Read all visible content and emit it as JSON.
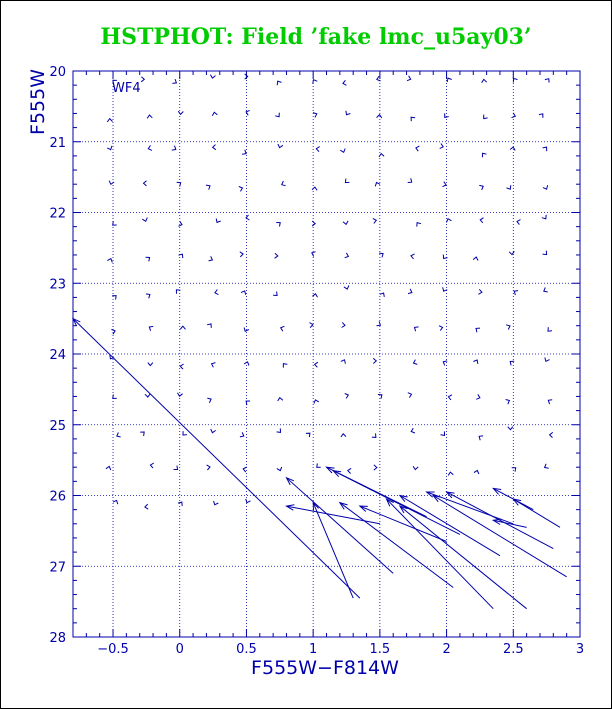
{
  "chart_data": {
    "type": "scatter",
    "title": "HSTPHOT: Field ’fake lmc_u5ay03’",
    "panel_label": "WF4",
    "xlabel": "F555W−F814W",
    "ylabel": "F555W",
    "xlim": [
      -0.8,
      3.0
    ],
    "ylim": [
      20,
      28
    ],
    "y_inverted": true,
    "grid": true,
    "x_ticks": [
      -0.5,
      0,
      0.5,
      1,
      1.5,
      2,
      2.5,
      3
    ],
    "x_tick_labels": [
      "−0.5",
      "0",
      "0.5",
      "1",
      "1.5",
      "2",
      "2.5",
      "3"
    ],
    "y_ticks": [
      20,
      21,
      22,
      23,
      24,
      25,
      26,
      27,
      28
    ],
    "y_tick_labels": [
      "20",
      "21",
      "22",
      "23",
      "24",
      "25",
      "26",
      "27",
      "28"
    ],
    "arrow_origins_x": [
      -0.5,
      -0.25,
      0,
      0.25,
      0.5,
      0.75,
      1,
      1.25,
      1.5,
      1.75,
      2,
      2.25,
      2.5,
      2.75
    ],
    "arrow_origins_y": [
      20.125,
      20.625,
      21.125,
      21.625,
      22.125,
      22.625,
      23.125,
      23.625,
      24.125,
      24.625,
      25.125,
      25.625,
      26.125
    ],
    "vectors": [
      {
        "x0": 1.85,
        "y0": 26.3,
        "x1": 1.1,
        "y1": 25.6
      },
      {
        "x0": 2.1,
        "y0": 26.55,
        "x1": 1.15,
        "y1": 25.65
      },
      {
        "x0": 2.0,
        "y0": 26.65,
        "x1": 1.35,
        "y1": 26.15
      },
      {
        "x0": 1.6,
        "y0": 27.1,
        "x1": 0.8,
        "y1": 25.75
      },
      {
        "x0": 1.3,
        "y0": 27.45,
        "x1": 1.0,
        "y1": 26.1
      },
      {
        "x0": 2.05,
        "y0": 27.3,
        "x1": 1.2,
        "y1": 26.1
      },
      {
        "x0": 2.35,
        "y0": 27.6,
        "x1": 1.55,
        "y1": 26.05
      },
      {
        "x0": 2.6,
        "y0": 27.6,
        "x1": 1.65,
        "y1": 26.15
      },
      {
        "x0": 2.4,
        "y0": 26.85,
        "x1": 1.65,
        "y1": 26.0
      },
      {
        "x0": 2.5,
        "y0": 26.4,
        "x1": 1.85,
        "y1": 25.95
      },
      {
        "x0": 2.9,
        "y0": 27.15,
        "x1": 1.9,
        "y1": 26.0
      },
      {
        "x0": 2.8,
        "y0": 26.75,
        "x1": 2.0,
        "y1": 25.95
      },
      {
        "x0": 2.6,
        "y0": 26.45,
        "x1": 2.35,
        "y1": 26.35
      },
      {
        "x0": 2.85,
        "y0": 26.45,
        "x1": 2.5,
        "y1": 26.05
      },
      {
        "x0": 2.65,
        "y0": 26.2,
        "x1": 2.35,
        "y1": 25.9
      },
      {
        "x0": 1.35,
        "y0": 27.45,
        "x1": -0.8,
        "y1": 23.5
      },
      {
        "x0": 1.5,
        "y0": 26.4,
        "x1": 0.8,
        "y1": 26.15
      }
    ]
  },
  "colors": {
    "axis": "#0000aa",
    "grid": "#0000aa",
    "marks": "#0000aa",
    "title": "#00cc00",
    "background": "#ffffff",
    "frame": "#000000"
  }
}
